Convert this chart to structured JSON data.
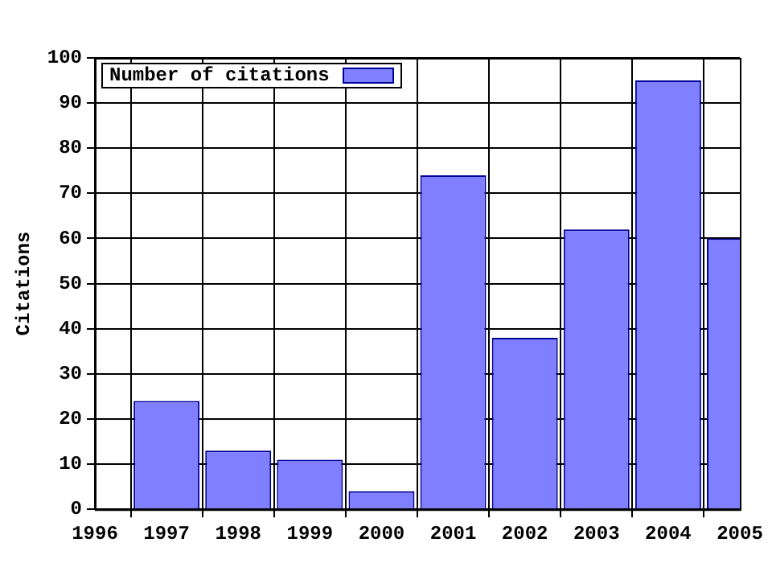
{
  "chart_data": {
    "type": "bar",
    "ylabel": "Citations",
    "x": [
      1997,
      1998,
      1999,
      2000,
      2001,
      2002,
      2003,
      2004,
      2005
    ],
    "series": [
      {
        "name": "Number of citations",
        "color": "#7f7fff",
        "values": [
          24,
          13,
          11,
          4,
          74,
          38,
          62,
          95,
          60
        ]
      }
    ],
    "xlim": [
      1996,
      2005
    ],
    "xticks": [
      1996,
      1997,
      1998,
      1999,
      2000,
      2001,
      2002,
      2003,
      2004,
      2005
    ],
    "ylim": [
      0,
      100
    ],
    "yticks": [
      0,
      10,
      20,
      30,
      40,
      50,
      60,
      70,
      80,
      90,
      100
    ],
    "grid": true,
    "legend": "top left"
  }
}
